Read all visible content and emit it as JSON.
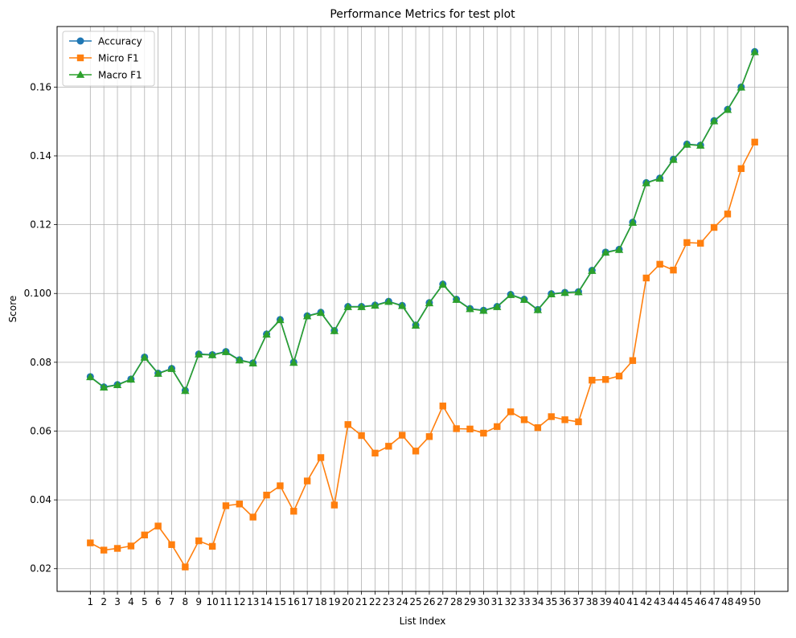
{
  "chart_data": {
    "type": "line",
    "title": "Performance Metrics for test plot",
    "xlabel": "List Index",
    "ylabel": "Score",
    "x": [
      1,
      2,
      3,
      4,
      5,
      6,
      7,
      8,
      9,
      10,
      11,
      12,
      13,
      14,
      15,
      16,
      17,
      18,
      19,
      20,
      21,
      22,
      23,
      24,
      25,
      26,
      27,
      28,
      29,
      30,
      31,
      32,
      33,
      34,
      35,
      36,
      37,
      38,
      39,
      40,
      41,
      42,
      43,
      44,
      45,
      46,
      47,
      48,
      49,
      50
    ],
    "xlim": [
      -1.45,
      52.45
    ],
    "ylim": [
      0.0134,
      0.1776
    ],
    "yticks": [
      0.02,
      0.04,
      0.06,
      0.08,
      0.1,
      0.12,
      0.14,
      0.16
    ],
    "ytick_labels": [
      "0.02",
      "0.04",
      "0.06",
      "0.08",
      "0.100",
      "0.12",
      "0.14",
      "0.16"
    ],
    "grid": true,
    "legend_position": "upper-left",
    "series": [
      {
        "name": "Accuracy",
        "color": "#1f77b4",
        "marker": "circle",
        "values": [
          0.0758,
          0.0728,
          0.0735,
          0.0751,
          0.0815,
          0.0768,
          0.0782,
          0.0718,
          0.0824,
          0.0822,
          0.0831,
          0.0807,
          0.0798,
          0.0882,
          0.0924,
          0.08,
          0.0935,
          0.0945,
          0.0892,
          0.0962,
          0.0962,
          0.0966,
          0.0977,
          0.0965,
          0.0908,
          0.0973,
          0.1027,
          0.0983,
          0.0956,
          0.0951,
          0.0962,
          0.0997,
          0.0983,
          0.0953,
          0.0999,
          0.1003,
          0.1005,
          0.1067,
          0.112,
          0.1128,
          0.1207,
          0.1322,
          0.1335,
          0.139,
          0.1434,
          0.1431,
          0.1502,
          0.1535,
          0.16,
          0.1703
        ]
      },
      {
        "name": "Micro F1",
        "color": "#ff7f0e",
        "marker": "square",
        "values": [
          0.0275,
          0.0254,
          0.0259,
          0.0266,
          0.0298,
          0.0324,
          0.027,
          0.0205,
          0.0281,
          0.0265,
          0.0383,
          0.0388,
          0.035,
          0.0414,
          0.0441,
          0.0367,
          0.0455,
          0.0523,
          0.0385,
          0.0619,
          0.0587,
          0.0536,
          0.0556,
          0.0588,
          0.0542,
          0.0584,
          0.0673,
          0.0607,
          0.0606,
          0.0594,
          0.0613,
          0.0656,
          0.0633,
          0.061,
          0.0642,
          0.0633,
          0.0627,
          0.0748,
          0.075,
          0.076,
          0.0805,
          0.1045,
          0.1085,
          0.1068,
          0.1148,
          0.1146,
          0.1192,
          0.1231,
          0.1363,
          0.144
        ]
      },
      {
        "name": "Macro F1",
        "color": "#2ca02c",
        "marker": "triangle",
        "values": [
          0.0757,
          0.0727,
          0.0734,
          0.075,
          0.0814,
          0.0767,
          0.0781,
          0.0717,
          0.0823,
          0.0821,
          0.083,
          0.0806,
          0.0797,
          0.0881,
          0.0923,
          0.0799,
          0.0934,
          0.0944,
          0.0891,
          0.0961,
          0.0961,
          0.0965,
          0.0976,
          0.0964,
          0.0907,
          0.0972,
          0.1026,
          0.0982,
          0.0955,
          0.095,
          0.0961,
          0.0996,
          0.0982,
          0.0952,
          0.0998,
          0.1002,
          0.1004,
          0.1066,
          0.1119,
          0.1127,
          0.1206,
          0.1321,
          0.1334,
          0.1389,
          0.1433,
          0.143,
          0.1501,
          0.1534,
          0.1599,
          0.1702
        ]
      }
    ]
  }
}
